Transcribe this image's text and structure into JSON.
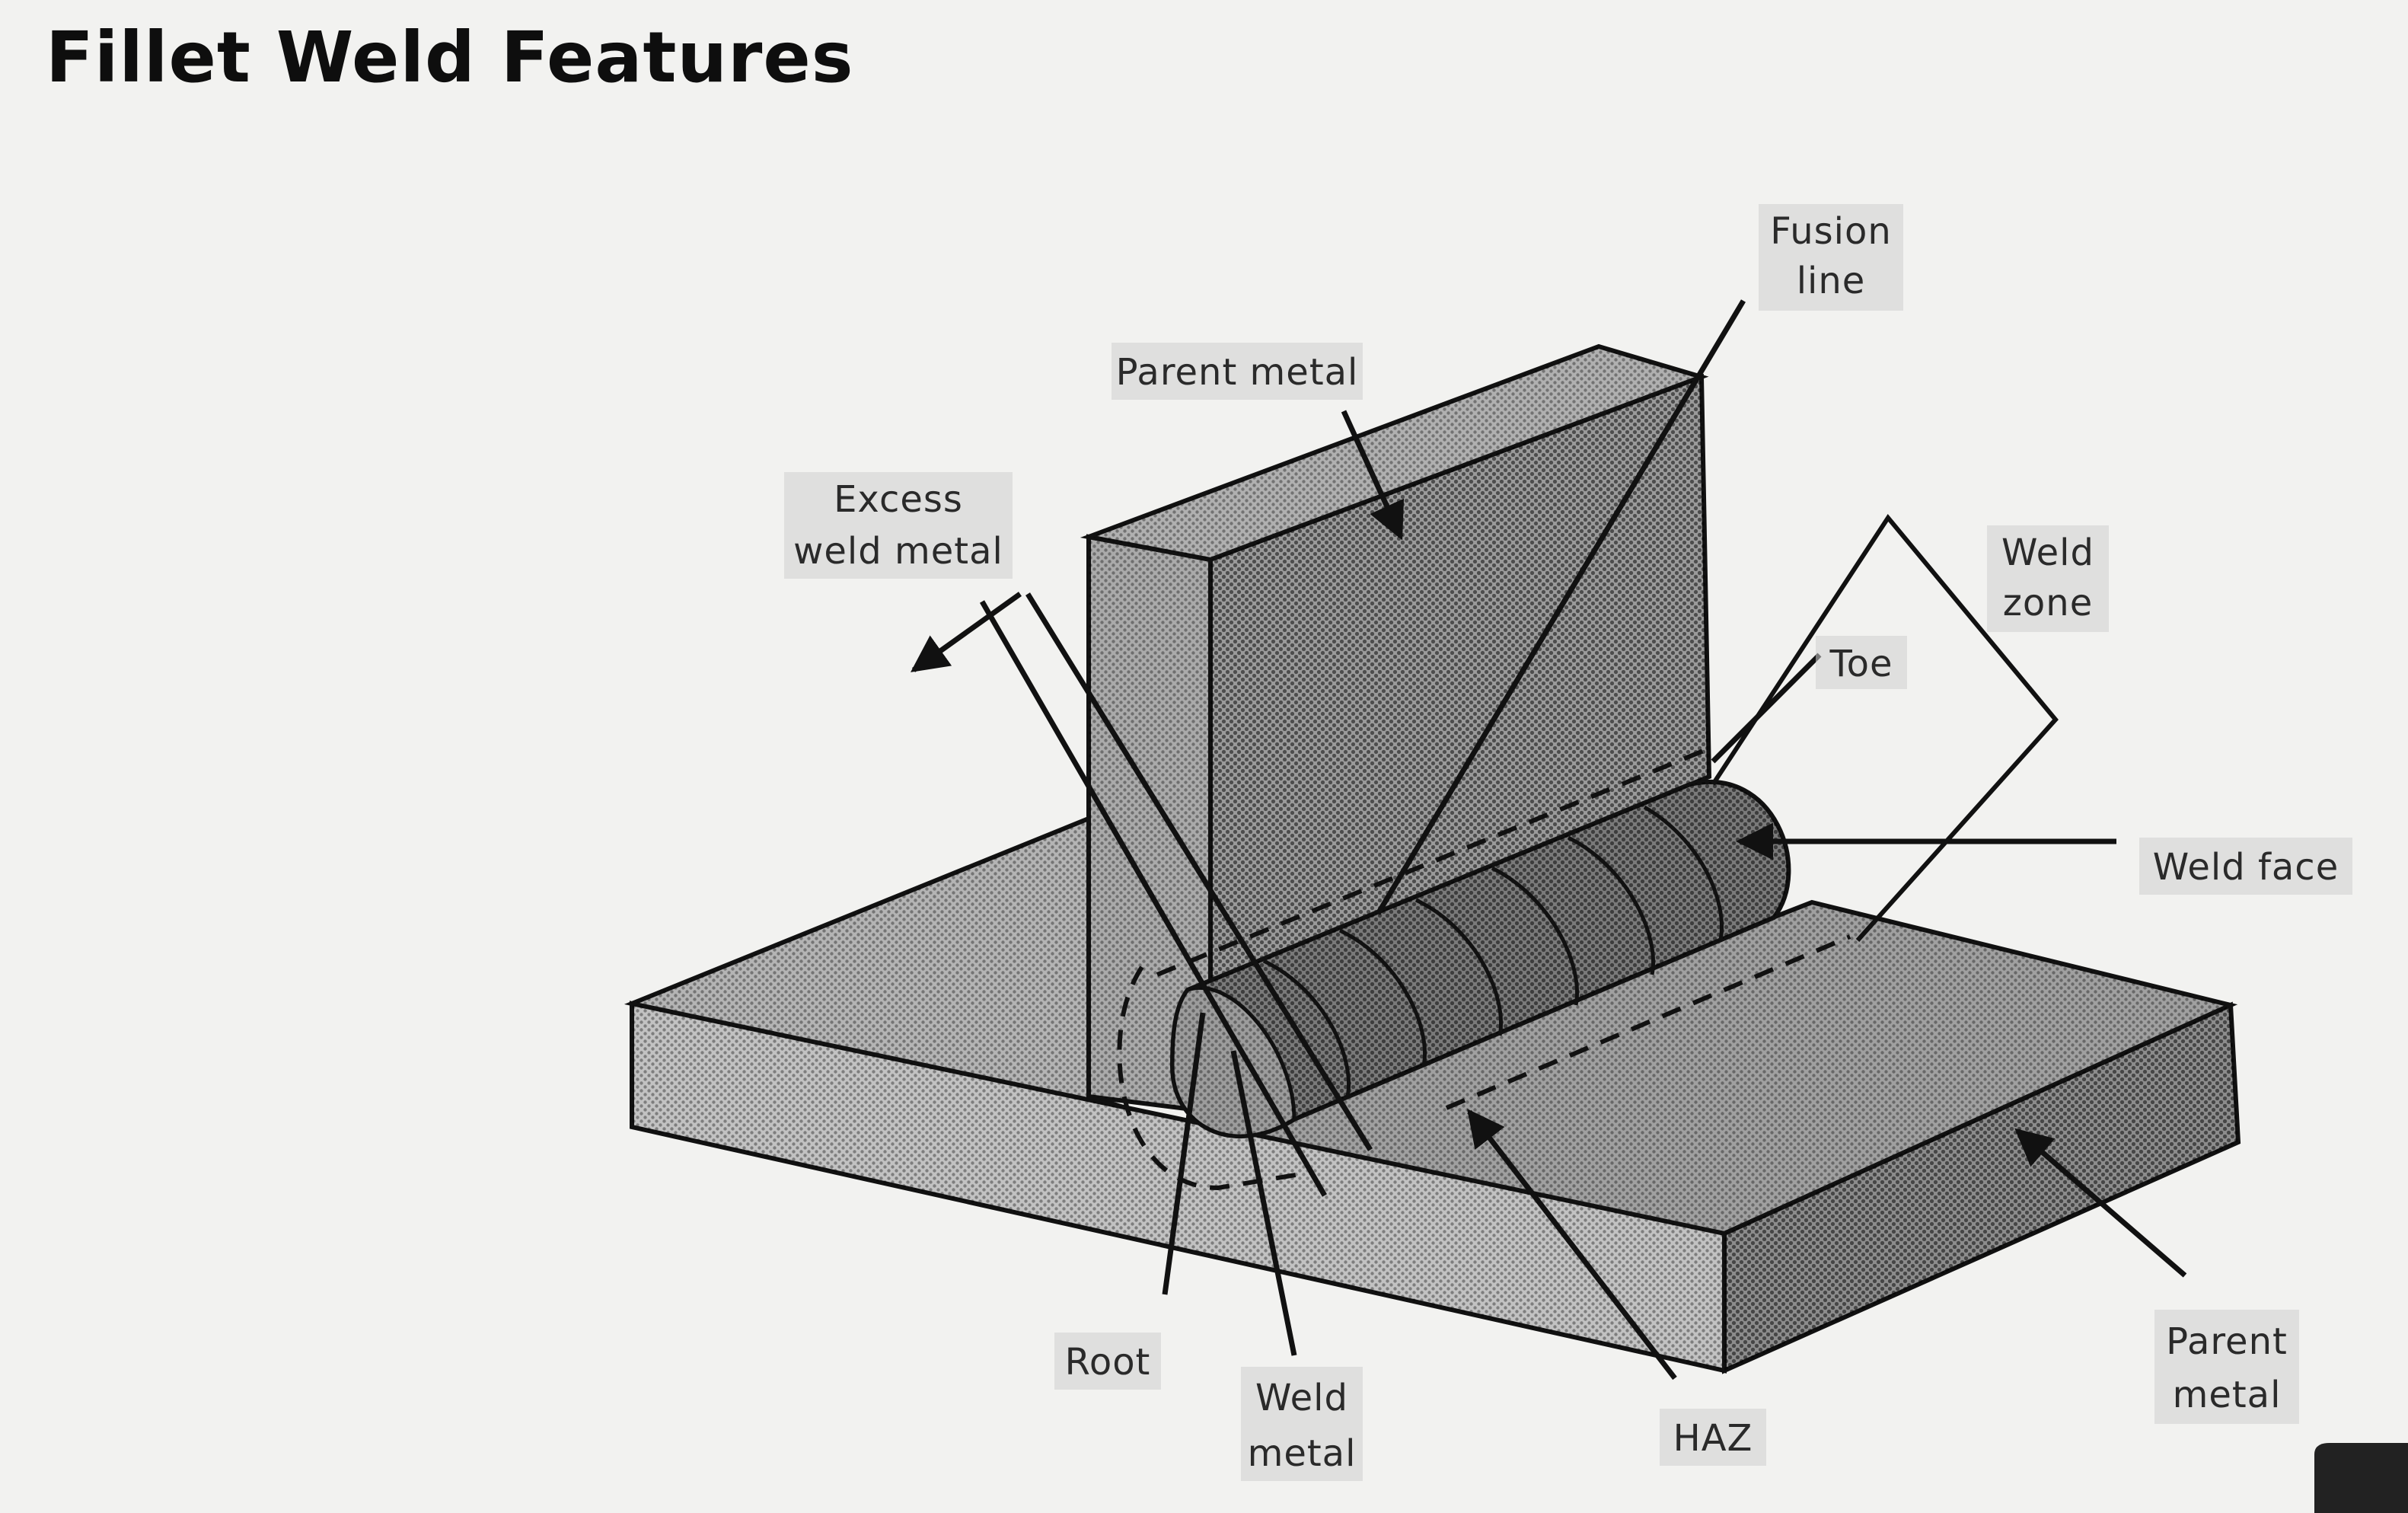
{
  "title": "Fillet Weld Features",
  "labels": {
    "fusion_line": [
      "Fusion",
      "line"
    ],
    "parent_metal_top": [
      "Parent metal"
    ],
    "excess_weld_metal": [
      "Excess",
      "weld metal"
    ],
    "weld_zone": [
      "Weld",
      "zone"
    ],
    "toe": [
      "Toe"
    ],
    "weld_face": [
      "Weld face"
    ],
    "root": [
      "Root"
    ],
    "weld_metal": [
      "Weld",
      "metal"
    ],
    "haz": [
      "HAZ"
    ],
    "parent_metal_bottom": [
      "Parent",
      "metal"
    ]
  },
  "colors": {
    "line": "#111111",
    "vertical_plate_front": "#9a9a9a",
    "vertical_plate_side": "#8a8a8a",
    "base_plate_top_left": "#b4b4b4",
    "base_plate_top_right": "#a0a0a0",
    "base_plate_front": "#c2c2c2",
    "base_plate_side": "#8c8c8c",
    "weld_bead": "#7a7a7a",
    "weld_end": "#9c9c9c"
  }
}
